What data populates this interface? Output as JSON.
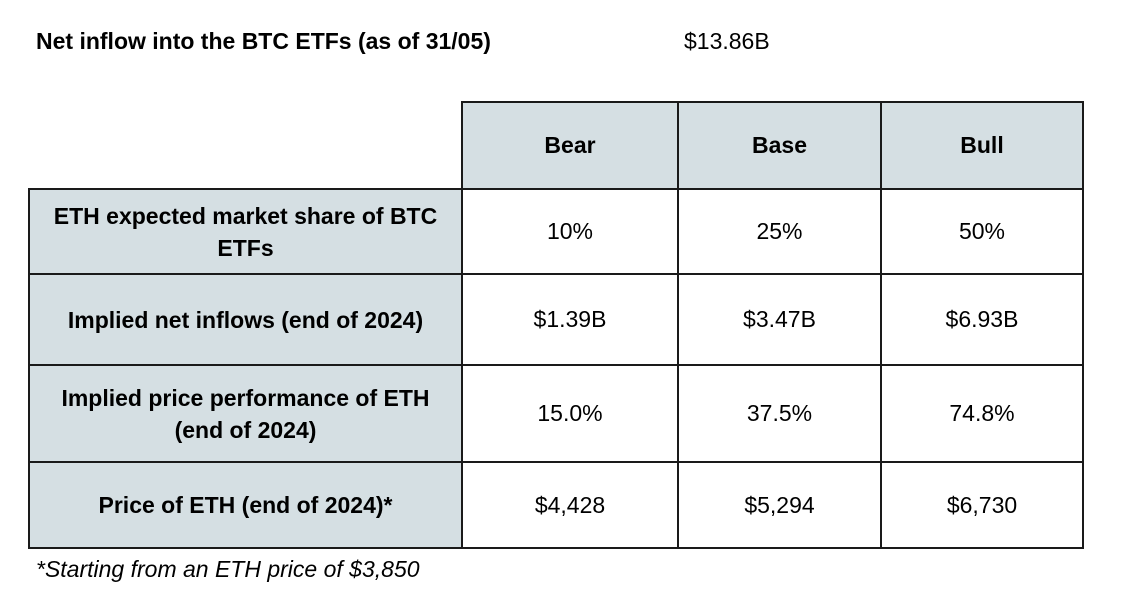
{
  "headline": {
    "label": "Net inflow into the BTC ETFs (as of 31/05)",
    "value": "$13.86B"
  },
  "table": {
    "columns": [
      "Bear",
      "Base",
      "Bull"
    ],
    "rows": [
      {
        "label": "ETH expected market share of BTC ETFs",
        "values": [
          "10%",
          "25%",
          "50%"
        ]
      },
      {
        "label": "Implied net inflows (end of 2024)",
        "values": [
          "$1.39B",
          "$3.47B",
          "$6.93B"
        ]
      },
      {
        "label": "Implied price performance of ETH (end of 2024)",
        "values": [
          "15.0%",
          "37.5%",
          "74.8%"
        ]
      },
      {
        "label": "Price of ETH (end of 2024)*",
        "values": [
          "$4,428",
          "$5,294",
          "$6,730"
        ]
      }
    ]
  },
  "colors": {
    "header_fill": "#d5dfe3",
    "border": "#1a1a1a"
  },
  "footnote": "*Starting from an ETH price of $3,850"
}
